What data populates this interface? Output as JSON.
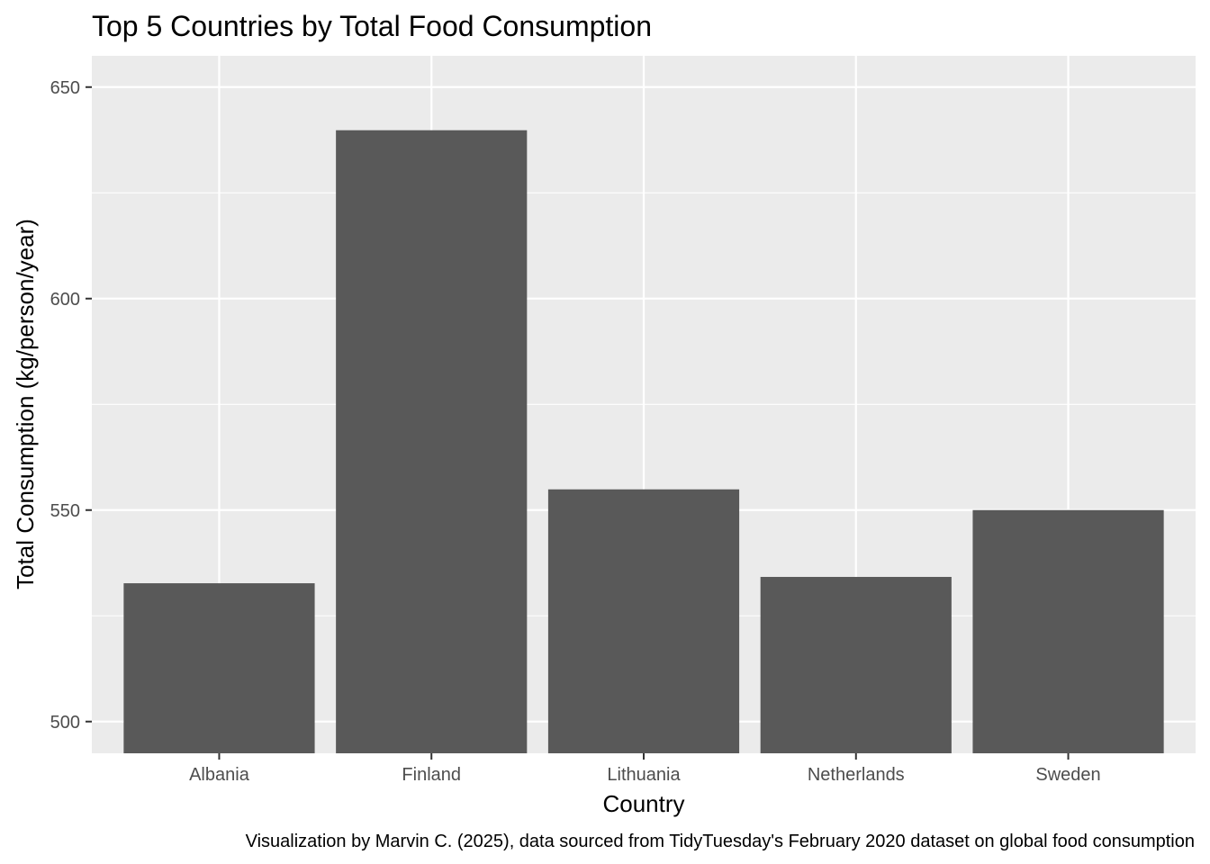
{
  "chart_data": {
    "type": "bar",
    "title": "Top 5 Countries by Total Food Consumption",
    "xlabel": "Country",
    "ylabel": "Total Consumption (kg/person/year)",
    "caption": "Visualization by Marvin C. (2025), data sourced from TidyTuesday's February 2020 dataset on global food consumption",
    "categories": [
      "Albania",
      "Finland",
      "Lithuania",
      "Netherlands",
      "Sweden"
    ],
    "values": [
      532.7,
      639.8,
      554.9,
      534.2,
      550.0
    ],
    "ylim": [
      492.5,
      657.4
    ],
    "yticks": [
      500,
      550,
      600,
      650
    ],
    "grid": true,
    "legend": "none",
    "colors": {
      "bar": "#595959",
      "panel": "#ebebeb",
      "grid": "#ffffff",
      "tick_text": "#4d4d4d",
      "tick_mark": "#333333"
    }
  }
}
